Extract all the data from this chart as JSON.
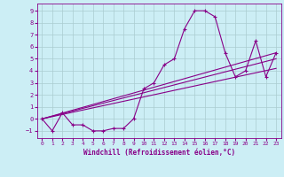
{
  "xlabel": "Windchill (Refroidissement éolien,°C)",
  "background_color": "#cceef5",
  "line_color": "#880088",
  "xlim": [
    -0.5,
    23.5
  ],
  "ylim": [
    -1.6,
    9.6
  ],
  "xticks": [
    0,
    1,
    2,
    3,
    4,
    5,
    6,
    7,
    8,
    9,
    10,
    11,
    12,
    13,
    14,
    15,
    16,
    17,
    18,
    19,
    20,
    21,
    22,
    23
  ],
  "yticks": [
    -1,
    0,
    1,
    2,
    3,
    4,
    5,
    6,
    7,
    8,
    9
  ],
  "main_x": [
    0,
    1,
    2,
    3,
    4,
    5,
    6,
    7,
    8,
    9,
    10,
    11,
    12,
    13,
    14,
    15,
    16,
    17,
    18,
    19,
    20,
    21,
    22,
    23
  ],
  "main_y": [
    0,
    -1,
    0.5,
    -0.5,
    -0.5,
    -1,
    -1,
    -0.8,
    -0.8,
    0,
    2.5,
    3,
    4.5,
    5,
    7.5,
    9,
    9,
    8.5,
    5.5,
    3.5,
    4,
    6.5,
    3.5,
    5.5
  ],
  "line1_x": [
    0,
    23
  ],
  "line1_y": [
    0.0,
    5.5
  ],
  "line2_x": [
    0,
    23
  ],
  "line2_y": [
    0.0,
    4.2
  ],
  "line3_x": [
    0,
    23
  ],
  "line3_y": [
    0.0,
    5.0
  ],
  "grid_color": "#aaccd0",
  "marker": "+"
}
